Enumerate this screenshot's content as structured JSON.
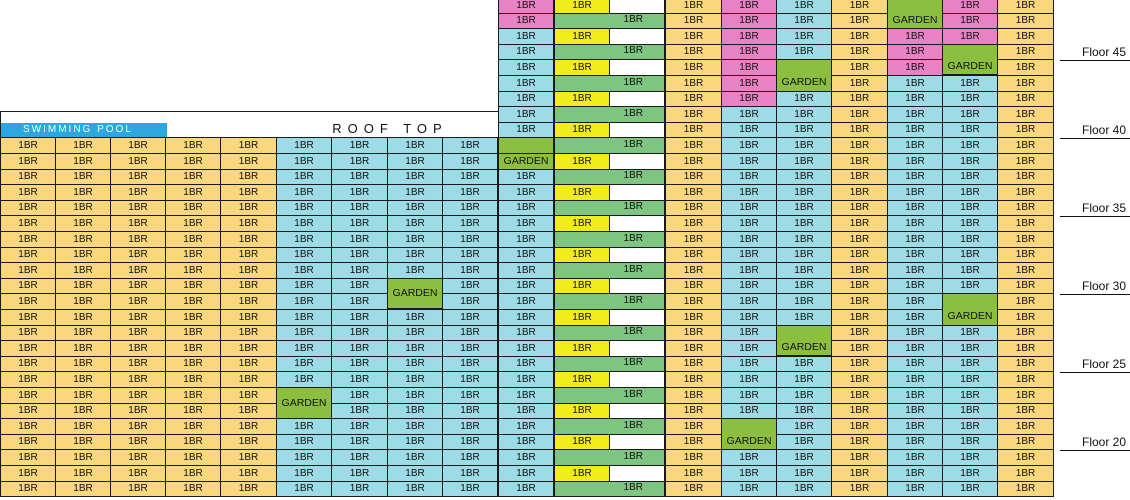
{
  "colors": {
    "yellow_orange": "#f9d77f",
    "light_blue": "#9ddbe6",
    "pink": "#e783c4",
    "bright_yellow": "#f2ec1c",
    "green": "#7dc580",
    "dark_green": "#8cbf3f",
    "white": "#ffffff",
    "pool_blue": "#2ba8e0"
  },
  "labels": {
    "swimming_pool": "SWIMMING POOL",
    "roof_top": "ROOF TOP",
    "unit": "1BR",
    "garden": "GARDEN"
  },
  "floor_labels": [
    "Floor 45",
    "Floor 40",
    "Floor 35",
    "Floor 30",
    "Floor 25",
    "Floor 20"
  ],
  "legend_colors_note": null,
  "grid": {
    "left_block": {
      "row_count": 23,
      "column_colors": [
        "yellow_orange",
        "yellow_orange",
        "yellow_orange",
        "yellow_orange",
        "yellow_orange",
        "light_blue",
        "light_blue",
        "light_blue",
        "light_blue"
      ],
      "gardens": [
        {
          "floor_row": 10,
          "col": 7
        },
        {
          "floor_row": 17,
          "col": 5
        }
      ]
    },
    "center_columns": {
      "row_count": 32,
      "col_a_pattern": "1BR on every row",
      "col_b_pattern": "alternating yellow 1BR and green wide 1BR"
    },
    "right_block": {
      "row_count": 32,
      "column_colors": [
        "yellow_orange",
        "pink_upper",
        "light_blue",
        "yellow_orange",
        "pink_upper",
        "pink_upper",
        "yellow_orange"
      ],
      "gardens": [
        {
          "row": 0,
          "col": 4
        },
        {
          "row": 3,
          "col": 5
        },
        {
          "row": 4,
          "col": 2
        },
        {
          "row": 19,
          "col": 5
        },
        {
          "row": 21,
          "col": 2
        },
        {
          "row": 27,
          "col": 1
        }
      ]
    }
  }
}
